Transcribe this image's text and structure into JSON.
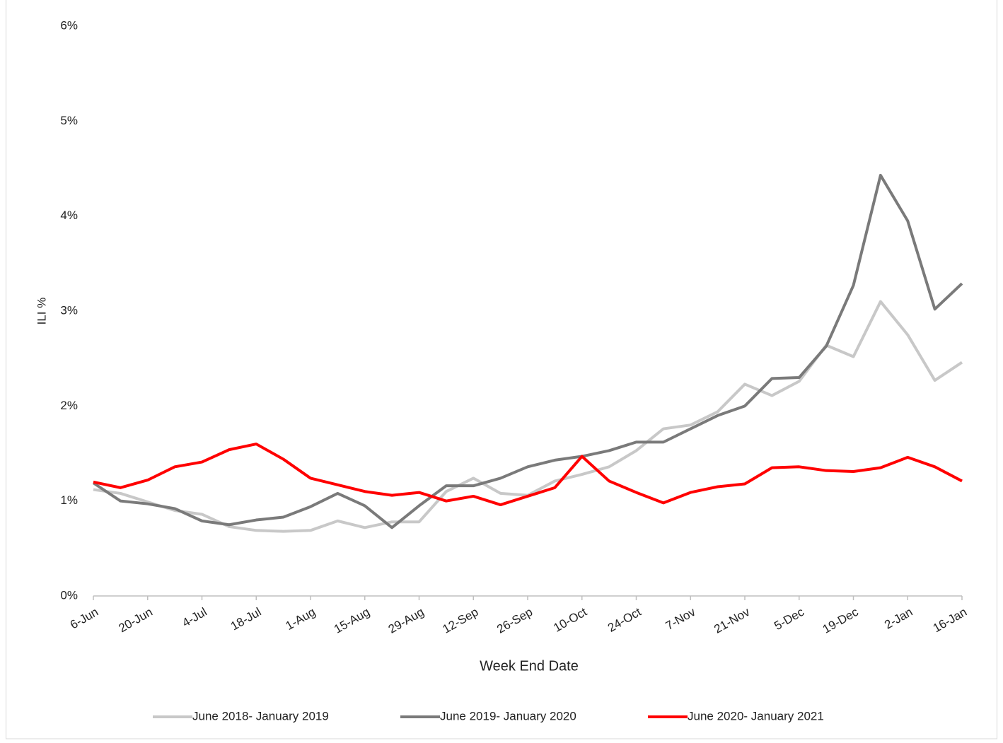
{
  "chart_data": {
    "type": "line",
    "x_label": "Week End Date",
    "y_label": "ILI %",
    "categories": [
      "6-Jun",
      null,
      "20-Jun",
      null,
      "4-Jul",
      null,
      "18-Jul",
      null,
      "1-Aug",
      null,
      "15-Aug",
      null,
      "29-Aug",
      null,
      "12-Sep",
      null,
      "26-Sep",
      null,
      "10-Oct",
      null,
      "24-Oct",
      null,
      "7-Nov",
      null,
      "21-Nov",
      null,
      "5-Dec",
      null,
      "19-Dec",
      null,
      "2-Jan",
      null,
      "16-Jan"
    ],
    "series": [
      {
        "name": "June 2018- January 2019",
        "color": "#c8c8c8",
        "values": [
          1.12,
          1.08,
          0.99,
          0.9,
          0.86,
          0.73,
          0.69,
          0.68,
          0.69,
          0.79,
          0.72,
          0.78,
          0.78,
          1.1,
          1.24,
          1.08,
          1.06,
          1.21,
          1.28,
          1.36,
          1.53,
          1.76,
          1.8,
          1.94,
          2.23,
          2.11,
          2.26,
          2.64,
          2.52,
          3.1,
          2.75,
          2.27,
          2.46
        ]
      },
      {
        "name": "June 2019- January 2020",
        "color": "#7a7a7a",
        "values": [
          1.19,
          1.0,
          0.97,
          0.92,
          0.79,
          0.75,
          0.8,
          0.83,
          0.94,
          1.08,
          0.95,
          0.72,
          0.95,
          1.16,
          1.16,
          1.24,
          1.36,
          1.43,
          1.47,
          1.53,
          1.62,
          1.62,
          1.76,
          1.9,
          2.0,
          2.29,
          2.3,
          2.63,
          3.27,
          4.43,
          3.95,
          3.02,
          3.29
        ]
      },
      {
        "name": "June 2020- January 2021",
        "color": "#ff0000",
        "values": [
          1.2,
          1.14,
          1.22,
          1.36,
          1.41,
          1.54,
          1.6,
          1.44,
          1.24,
          1.17,
          1.1,
          1.06,
          1.09,
          1.0,
          1.05,
          0.96,
          1.05,
          1.14,
          1.47,
          1.21,
          1.09,
          0.98,
          1.09,
          1.15,
          1.18,
          1.35,
          1.36,
          1.32,
          1.31,
          1.35,
          1.46,
          1.36,
          1.21
        ]
      }
    ],
    "ylim": [
      0,
      6
    ],
    "yticks": [
      {
        "value": 0,
        "label": "0%"
      },
      {
        "value": 1,
        "label": "1%"
      },
      {
        "value": 2,
        "label": "2%"
      },
      {
        "value": 3,
        "label": "3%"
      },
      {
        "value": 4,
        "label": "4%"
      },
      {
        "value": 5,
        "label": "5%"
      },
      {
        "value": 6,
        "label": "6%"
      }
    ],
    "grid": false,
    "legend": "bottom"
  }
}
